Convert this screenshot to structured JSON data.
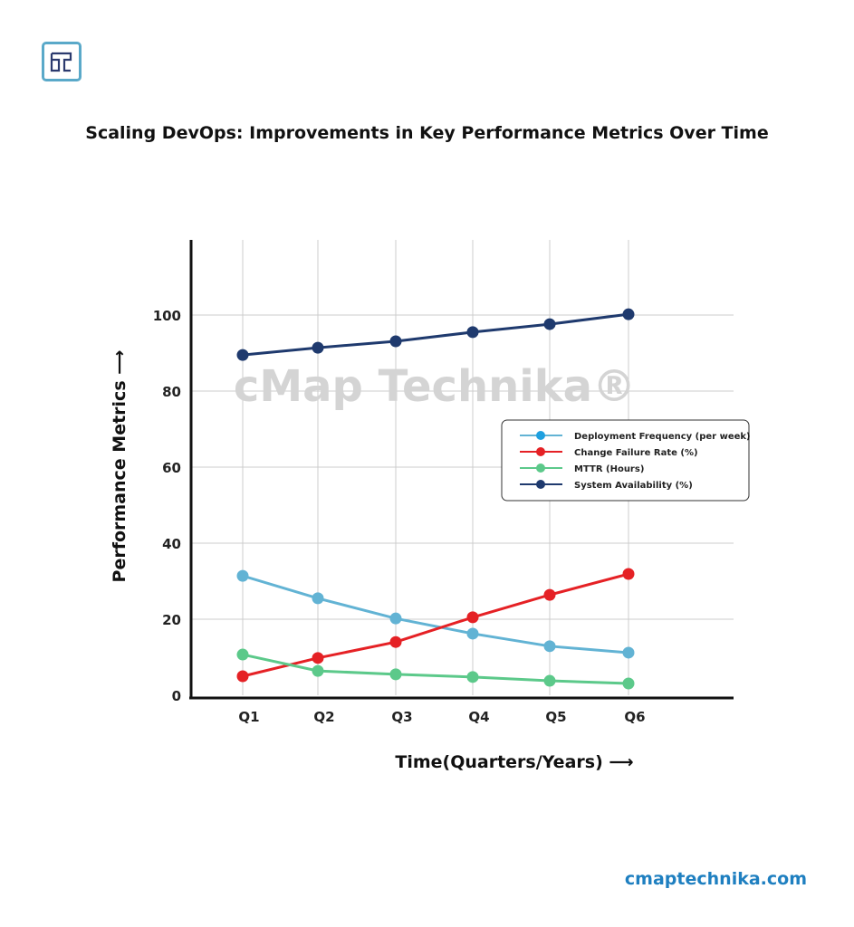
{
  "logo_text": "T",
  "site": "cmaptechnika.com",
  "watermark": "cMap Technika®",
  "chart_data": {
    "type": "line",
    "title": "Scaling DevOps: Improvements in Key Performance Metrics Over Time",
    "xlabel": "Time(Quarters/Years) ⟶",
    "ylabel": "Performance Metrics ⟶",
    "categories": [
      "Q1",
      "Q2",
      "Q3",
      "Q4",
      "Q5",
      "Q6"
    ],
    "yticks": [
      0,
      20,
      40,
      60,
      80,
      100
    ],
    "ylim": [
      0,
      120
    ],
    "grid": true,
    "legend_position": "right",
    "series": [
      {
        "name": "Deployment Frequency (per week)",
        "color": "#62b3d4",
        "marker": "#1ea0e0",
        "values": [
          31.4,
          25.5,
          20.2,
          16.2,
          12.9,
          11.2
        ]
      },
      {
        "name": "Change Failure Rate (%)",
        "color": "#e52125",
        "marker": "#e52125",
        "values": [
          5,
          9.8,
          14,
          20.5,
          26.4,
          31.9
        ]
      },
      {
        "name": "MTTR (Hours)",
        "color": "#5cc98a",
        "marker": "#5cc98a",
        "values": [
          10.7,
          6.4,
          5.5,
          4.8,
          3.8,
          3.1
        ]
      },
      {
        "name": "System Availability (%)",
        "color": "#1f3a6e",
        "marker": "#1f3a6e",
        "values": [
          89.5,
          91.4,
          93.1,
          95.5,
          97.6,
          100.2
        ]
      }
    ]
  }
}
